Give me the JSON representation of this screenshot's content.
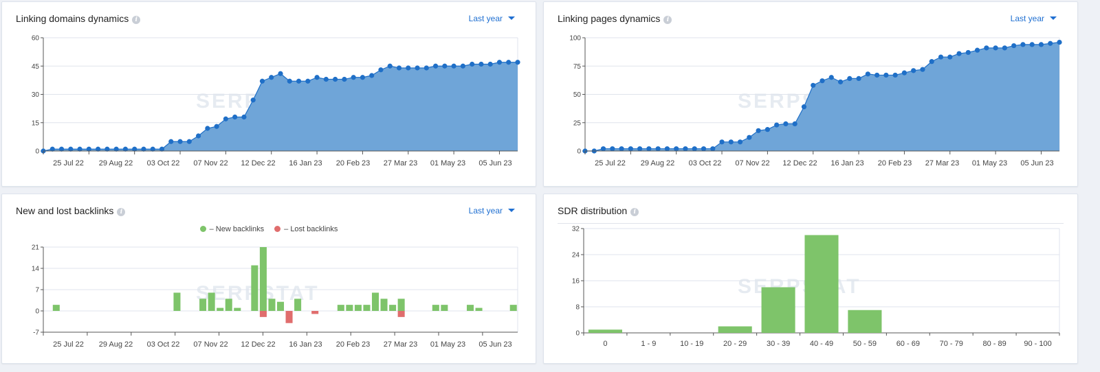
{
  "watermark": "SERPSTAT",
  "colors": {
    "area": "#6fa5d8",
    "line": "#1f6fc7",
    "new": "#7ec46a",
    "lost": "#e06d6d",
    "grid": "#dfe3ec",
    "link": "#1f6fd1"
  },
  "panels": {
    "linking_domains": {
      "title": "Linking domains dynamics",
      "period": "Last year"
    },
    "linking_pages": {
      "title": "Linking pages dynamics",
      "period": "Last year"
    },
    "backlinks": {
      "title": "New and lost backlinks",
      "period": "Last year",
      "legend_new": "– New backlinks",
      "legend_lost": "– Lost backlinks"
    },
    "sdr": {
      "title": "SDR distribution"
    }
  },
  "chart_data": [
    {
      "id": "linking_domains",
      "type": "area",
      "title": "Linking domains dynamics",
      "ylim": [
        0,
        60
      ],
      "yticks": [
        0,
        15,
        30,
        45,
        60
      ],
      "xlabels": [
        "25 Jul 22",
        "29 Aug 22",
        "03 Oct 22",
        "07 Nov 22",
        "12 Dec 22",
        "16 Jan 23",
        "20 Feb 23",
        "27 Mar 23",
        "01 May 23",
        "05 Jun 23"
      ],
      "values": [
        0,
        1,
        1,
        1,
        1,
        1,
        1,
        1,
        1,
        1,
        1,
        1,
        1,
        1,
        5,
        5,
        5,
        8,
        12,
        13,
        17,
        18,
        18,
        27,
        37,
        39,
        41,
        37,
        37,
        37,
        39,
        38,
        38,
        38,
        39,
        39,
        40,
        43,
        45,
        44,
        44,
        44,
        44,
        45,
        45,
        45,
        45,
        46,
        46,
        46,
        47,
        47,
        47
      ]
    },
    {
      "id": "linking_pages",
      "type": "area",
      "title": "Linking pages dynamics",
      "ylim": [
        0,
        100
      ],
      "yticks": [
        0,
        25,
        50,
        75,
        100
      ],
      "xlabels": [
        "25 Jul 22",
        "29 Aug 22",
        "03 Oct 22",
        "07 Nov 22",
        "12 Dec 22",
        "16 Jan 23",
        "20 Feb 23",
        "27 Mar 23",
        "01 May 23",
        "05 Jun 23"
      ],
      "values": [
        0,
        0,
        2,
        2,
        2,
        2,
        2,
        2,
        2,
        2,
        2,
        2,
        2,
        2,
        2,
        8,
        8,
        8,
        12,
        18,
        19,
        23,
        24,
        24,
        39,
        58,
        62,
        65,
        61,
        64,
        64,
        68,
        67,
        67,
        67,
        69,
        71,
        72,
        79,
        83,
        83,
        86,
        87,
        89,
        91,
        91,
        91,
        93,
        94,
        94,
        94,
        95,
        96
      ]
    },
    {
      "id": "backlinks",
      "type": "bar",
      "title": "New and lost backlinks",
      "ylim": [
        -7,
        21
      ],
      "yticks": [
        -7,
        0,
        7,
        14,
        21
      ],
      "xlabels": [
        "25 Jul 22",
        "29 Aug 22",
        "03 Oct 22",
        "07 Nov 22",
        "12 Dec 22",
        "16 Jan 23",
        "20 Feb 23",
        "27 Mar 23",
        "01 May 23",
        "05 Jun 23"
      ],
      "series": [
        {
          "name": "New backlinks",
          "values": [
            0,
            2,
            0,
            0,
            0,
            0,
            0,
            0,
            0,
            0,
            0,
            0,
            0,
            0,
            0,
            6,
            0,
            0,
            4,
            6,
            1,
            4,
            1,
            0,
            15,
            21,
            4,
            3,
            0,
            4,
            0,
            0,
            0,
            0,
            2,
            2,
            2,
            2,
            6,
            4,
            2,
            4,
            0,
            0,
            0,
            2,
            2,
            0,
            0,
            2,
            1,
            0,
            0,
            0,
            2
          ]
        },
        {
          "name": "Lost backlinks",
          "values": [
            0,
            0,
            0,
            0,
            0,
            0,
            0,
            0,
            0,
            0,
            0,
            0,
            0,
            0,
            0,
            0,
            0,
            0,
            0,
            0,
            0,
            0,
            0,
            0,
            0,
            -2,
            0,
            0,
            -4,
            0,
            0,
            -1,
            0,
            0,
            0,
            0,
            0,
            0,
            0,
            0,
            0,
            -2,
            0,
            0,
            0,
            0,
            0,
            0,
            0,
            0,
            0,
            0,
            0,
            0,
            0
          ]
        }
      ]
    },
    {
      "id": "sdr",
      "type": "bar",
      "title": "SDR distribution",
      "ylim": [
        0,
        32
      ],
      "yticks": [
        0,
        8,
        16,
        24,
        32
      ],
      "categories": [
        "0",
        "1 - 9",
        "10 - 19",
        "20 - 29",
        "30 - 39",
        "40 - 49",
        "50 - 59",
        "60 - 69",
        "70 - 79",
        "80 - 89",
        "90 - 100"
      ],
      "values": [
        1,
        0,
        0,
        2,
        14,
        30,
        7,
        0,
        0,
        0,
        0
      ]
    }
  ]
}
